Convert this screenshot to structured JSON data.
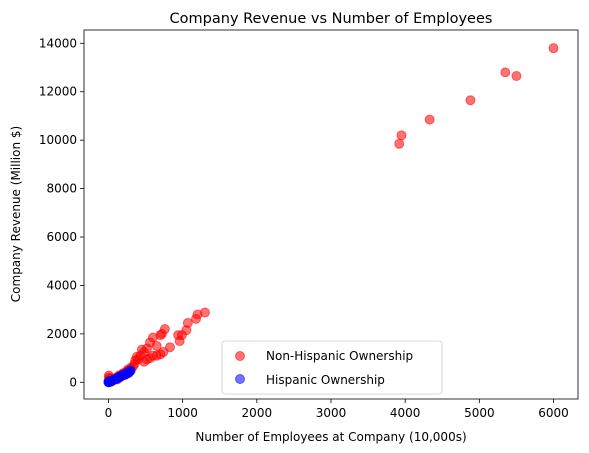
{
  "chart_data": {
    "type": "scatter",
    "title": "Company Revenue vs Number of Employees",
    "xlabel": "Number of Employees at Company (10,000s)",
    "ylabel": "Company Revenue (Million $)",
    "xlim": [
      -330,
      6330
    ],
    "ylim": [
      -690,
      14550
    ],
    "xticks": [
      0,
      1000,
      2000,
      3000,
      4000,
      5000,
      6000
    ],
    "yticks": [
      0,
      2000,
      4000,
      6000,
      8000,
      10000,
      12000,
      14000
    ],
    "grid": false,
    "legend": {
      "position": "bottom-center"
    },
    "series": [
      {
        "name": "Non-Hispanic Ownership",
        "color": "#ff0000",
        "opacity": 0.55,
        "points": [
          [
            6000,
            13800
          ],
          [
            5350,
            12800
          ],
          [
            5500,
            12650
          ],
          [
            4880,
            11650
          ],
          [
            4330,
            10850
          ],
          [
            3950,
            10200
          ],
          [
            3920,
            9850
          ],
          [
            1300,
            2880
          ],
          [
            1200,
            2800
          ],
          [
            1180,
            2620
          ],
          [
            1070,
            2450
          ],
          [
            1050,
            2150
          ],
          [
            990,
            1950
          ],
          [
            940,
            1950
          ],
          [
            960,
            1700
          ],
          [
            830,
            1450
          ],
          [
            760,
            2200
          ],
          [
            720,
            2000
          ],
          [
            700,
            1950
          ],
          [
            740,
            1250
          ],
          [
            700,
            1150
          ],
          [
            650,
            1100
          ],
          [
            600,
            1850
          ],
          [
            560,
            1650
          ],
          [
            520,
            1400
          ],
          [
            480,
            1250
          ],
          [
            450,
            1350
          ],
          [
            430,
            1100
          ],
          [
            400,
            950
          ],
          [
            380,
            1050
          ],
          [
            360,
            900
          ],
          [
            350,
            750
          ],
          [
            330,
            650
          ],
          [
            520,
            950
          ],
          [
            480,
            850
          ],
          [
            560,
            1000
          ],
          [
            650,
            1500
          ],
          [
            600,
            1100
          ],
          [
            300,
            600
          ],
          [
            280,
            500
          ],
          [
            250,
            450
          ],
          [
            230,
            400
          ],
          [
            210,
            350
          ],
          [
            190,
            330
          ],
          [
            170,
            300
          ],
          [
            150,
            260
          ],
          [
            130,
            220
          ],
          [
            110,
            190
          ],
          [
            90,
            160
          ],
          [
            70,
            130
          ],
          [
            50,
            100
          ],
          [
            30,
            70
          ],
          [
            20,
            50
          ],
          [
            10,
            30
          ],
          [
            5,
            280
          ],
          [
            8,
            200
          ],
          [
            15,
            150
          ],
          [
            40,
            60
          ],
          [
            60,
            90
          ],
          [
            80,
            140
          ],
          [
            100,
            180
          ],
          [
            120,
            120
          ],
          [
            0,
            10
          ],
          [
            3,
            60
          ],
          [
            25,
            20
          ],
          [
            45,
            40
          ],
          [
            140,
            280
          ],
          [
            160,
            220
          ],
          [
            180,
            260
          ],
          [
            200,
            380
          ],
          [
            220,
            300
          ],
          [
            240,
            420
          ],
          [
            260,
            520
          ],
          [
            270,
            380
          ]
        ]
      },
      {
        "name": "Hispanic Ownership",
        "color": "#0000ff",
        "opacity": 0.55,
        "points": [
          [
            300,
            490
          ],
          [
            290,
            450
          ],
          [
            280,
            430
          ],
          [
            270,
            400
          ],
          [
            260,
            380
          ],
          [
            240,
            350
          ],
          [
            220,
            330
          ],
          [
            200,
            300
          ],
          [
            180,
            280
          ],
          [
            160,
            240
          ],
          [
            140,
            200
          ],
          [
            120,
            170
          ],
          [
            100,
            140
          ],
          [
            80,
            110
          ],
          [
            60,
            90
          ],
          [
            50,
            70
          ],
          [
            40,
            60
          ],
          [
            30,
            40
          ],
          [
            20,
            30
          ],
          [
            15,
            20
          ],
          [
            10,
            15
          ],
          [
            5,
            10
          ],
          [
            2,
            5
          ],
          [
            0,
            2
          ],
          [
            8,
            40
          ],
          [
            12,
            25
          ],
          [
            25,
            50
          ],
          [
            35,
            45
          ],
          [
            70,
            100
          ],
          [
            90,
            120
          ],
          [
            110,
            150
          ],
          [
            130,
            190
          ],
          [
            150,
            210
          ],
          [
            170,
            250
          ],
          [
            190,
            290
          ],
          [
            210,
            310
          ],
          [
            230,
            340
          ],
          [
            250,
            370
          ]
        ]
      }
    ]
  }
}
